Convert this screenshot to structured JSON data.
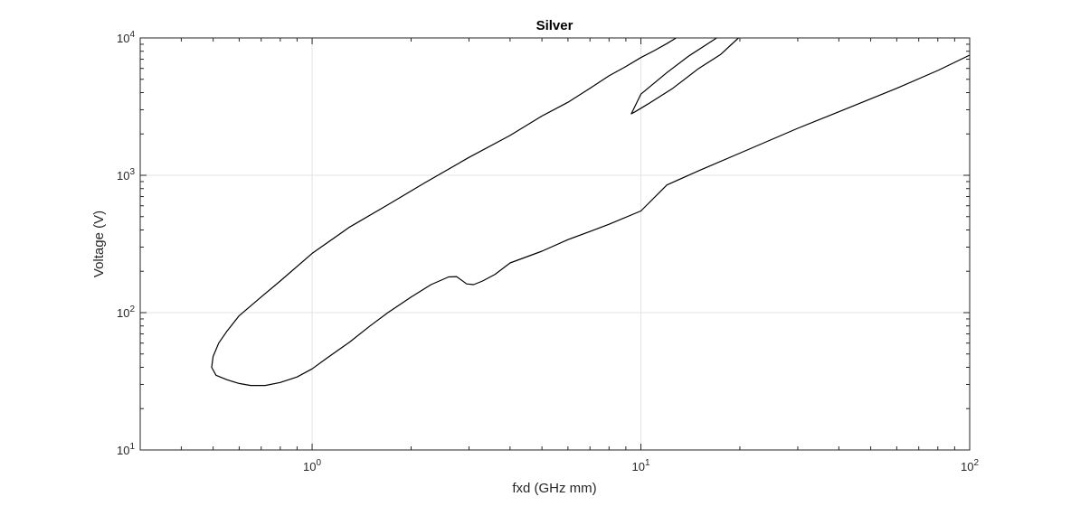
{
  "chart_data": {
    "type": "line",
    "title": "Silver",
    "xlabel": "fxd (GHz mm)",
    "ylabel": "Voltage (V)",
    "x_scale": "log",
    "y_scale": "log",
    "xlim": [
      0.3,
      100
    ],
    "ylim": [
      10,
      10000
    ],
    "grid": true,
    "x_ticks": [
      {
        "base": "10",
        "exp": "0",
        "value": 1
      },
      {
        "base": "10",
        "exp": "1",
        "value": 10
      },
      {
        "base": "10",
        "exp": "2",
        "value": 100
      }
    ],
    "y_ticks": [
      {
        "base": "10",
        "exp": "1",
        "value": 10
      },
      {
        "base": "10",
        "exp": "2",
        "value": 100
      },
      {
        "base": "10",
        "exp": "3",
        "value": 1000
      },
      {
        "base": "10",
        "exp": "4",
        "value": 10000
      }
    ],
    "series": [
      {
        "color": "#000000",
        "points": [
          [
            100,
            7500
          ],
          [
            80,
            5800
          ],
          [
            60,
            4300
          ],
          [
            40,
            2900
          ],
          [
            30,
            2200
          ],
          [
            20,
            1450
          ],
          [
            15,
            1080
          ],
          [
            12,
            850
          ],
          [
            10,
            550
          ],
          [
            8,
            440
          ],
          [
            7,
            390
          ],
          [
            6,
            340
          ],
          [
            5,
            280
          ],
          [
            4,
            230
          ],
          [
            3.6,
            190
          ],
          [
            3.3,
            170
          ],
          [
            3.1,
            160
          ],
          [
            2.95,
            162
          ],
          [
            2.85,
            172
          ],
          [
            2.75,
            183
          ],
          [
            2.6,
            182
          ],
          [
            2.3,
            160
          ],
          [
            2.0,
            130
          ],
          [
            1.7,
            100
          ],
          [
            1.5,
            80
          ],
          [
            1.3,
            61
          ],
          [
            1.1,
            46
          ],
          [
            1.0,
            39
          ],
          [
            0.9,
            34
          ],
          [
            0.8,
            31
          ],
          [
            0.72,
            29.5
          ],
          [
            0.65,
            29.5
          ],
          [
            0.6,
            30.5
          ],
          [
            0.55,
            32.5
          ],
          [
            0.51,
            35
          ],
          [
            0.495,
            40
          ],
          [
            0.5,
            48
          ],
          [
            0.52,
            60
          ],
          [
            0.55,
            73
          ],
          [
            0.6,
            95
          ],
          [
            0.7,
            130
          ],
          [
            0.8,
            170
          ],
          [
            1.0,
            270
          ],
          [
            1.3,
            420
          ],
          [
            1.7,
            610
          ],
          [
            2.2,
            880
          ],
          [
            3.0,
            1350
          ],
          [
            4.0,
            1950
          ],
          [
            5.0,
            2700
          ],
          [
            6.0,
            3400
          ],
          [
            7.0,
            4300
          ],
          [
            8.0,
            5300
          ],
          [
            9.0,
            6200
          ],
          [
            10.0,
            7200
          ],
          [
            11.0,
            8100
          ],
          [
            12.0,
            9100
          ],
          [
            12.8,
            10000
          ]
        ]
      },
      {
        "color": "#000000",
        "points": [
          [
            17.0,
            10000
          ],
          [
            14.0,
            7400
          ],
          [
            12.0,
            5600
          ],
          [
            10.0,
            3900
          ],
          [
            9.35,
            2800
          ],
          [
            9.6,
            2900
          ],
          [
            10.5,
            3300
          ],
          [
            12.5,
            4300
          ],
          [
            15.0,
            6000
          ],
          [
            17.5,
            7600
          ],
          [
            19.8,
            10000
          ]
        ]
      }
    ]
  }
}
